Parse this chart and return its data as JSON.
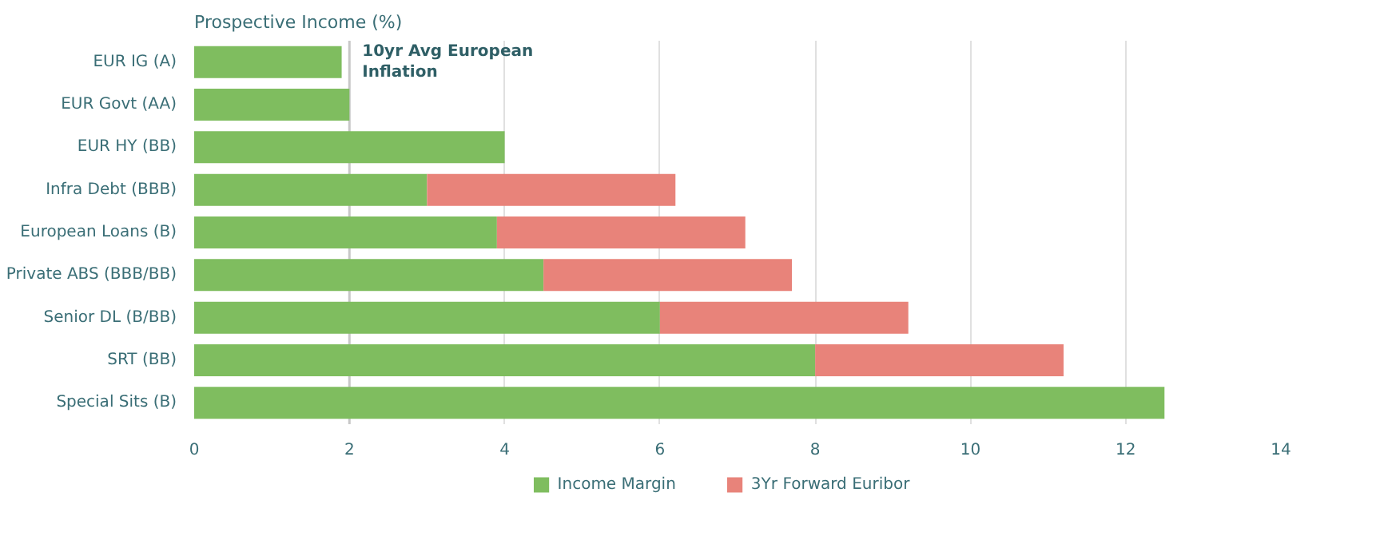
{
  "chart_data": {
    "type": "bar",
    "orientation": "horizontal",
    "stacked": true,
    "title": "Prospective Income (%)",
    "categories": [
      "EUR IG (A)",
      "EUR Govt (AA)",
      "EUR HY (BB)",
      "Infra Debt (BBB)",
      "European Loans (B)",
      "Private ABS (BBB/BB)",
      "Senior DL (B/BB)",
      "SRT (BB)",
      "Special Sits (B)"
    ],
    "series": [
      {
        "name": "Income Margin",
        "color": "#7fbd5f",
        "values": [
          1.9,
          2.0,
          4.0,
          3.0,
          3.9,
          4.5,
          6.0,
          8.0,
          12.5
        ]
      },
      {
        "name": "3Yr Forward Euribor",
        "color": "#e8837a",
        "values": [
          null,
          null,
          null,
          3.2,
          3.2,
          3.2,
          3.2,
          3.2,
          null
        ]
      }
    ],
    "xlim": [
      0,
      14
    ],
    "xticks": [
      0,
      2,
      4,
      6,
      8,
      10,
      12,
      14
    ],
    "grid": "x",
    "legend": "bottom",
    "ref_lines": [
      {
        "axis": "x",
        "value": 2,
        "label": "10yr Avg European Inflation",
        "color": "#c8c8c8"
      }
    ]
  }
}
